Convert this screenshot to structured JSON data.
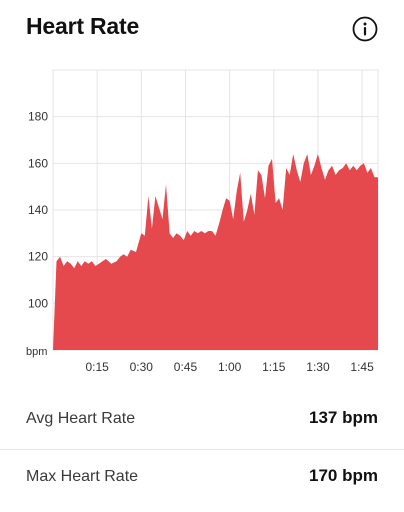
{
  "header": {
    "title": "Heart Rate",
    "info_icon": "info-icon"
  },
  "colors": {
    "accent": "#e5484d",
    "grid": "#e4e4e4",
    "tick_text": "#333333"
  },
  "chart_data": {
    "type": "area",
    "ylabel": "bpm",
    "ylim": [
      80,
      200
    ],
    "y_ticks": [
      100,
      120,
      140,
      160,
      180
    ],
    "x_unit": "minutes",
    "xlim": [
      0,
      1.84
    ],
    "x_ticks": [
      {
        "value": 0.25,
        "label": "0:15"
      },
      {
        "value": 0.5,
        "label": "0:30"
      },
      {
        "value": 0.75,
        "label": "0:45"
      },
      {
        "value": 1.0,
        "label": "1:00"
      },
      {
        "value": 1.25,
        "label": "1:15"
      },
      {
        "value": 1.5,
        "label": "1:30"
      },
      {
        "value": 1.75,
        "label": "1:45"
      }
    ],
    "series": [
      {
        "x": [
          0.0,
          0.02,
          0.04,
          0.06,
          0.08,
          0.1,
          0.12,
          0.14,
          0.16,
          0.18,
          0.2,
          0.22,
          0.24,
          0.26,
          0.28,
          0.3,
          0.33,
          0.36,
          0.38,
          0.4,
          0.42,
          0.44,
          0.47,
          0.5,
          0.52,
          0.54,
          0.56,
          0.58,
          0.6,
          0.62,
          0.64,
          0.66,
          0.68,
          0.7,
          0.72,
          0.74,
          0.76,
          0.78,
          0.8,
          0.82,
          0.84,
          0.86,
          0.88,
          0.9,
          0.92,
          0.94,
          0.96,
          0.98,
          1.0,
          1.02,
          1.04,
          1.06,
          1.08,
          1.1,
          1.12,
          1.14,
          1.16,
          1.18,
          1.2,
          1.22,
          1.24,
          1.26,
          1.28,
          1.3,
          1.32,
          1.34,
          1.36,
          1.38,
          1.4,
          1.42,
          1.44,
          1.46,
          1.48,
          1.5,
          1.52,
          1.54,
          1.56,
          1.58,
          1.6,
          1.62,
          1.64,
          1.66,
          1.68,
          1.7,
          1.72,
          1.74,
          1.76,
          1.78,
          1.8,
          1.82,
          1.84
        ],
        "values": [
          80,
          118,
          120,
          116,
          118,
          117,
          115,
          118,
          116,
          118,
          117,
          118,
          116,
          117,
          118,
          119,
          117,
          118,
          120,
          121,
          120,
          123,
          122,
          130,
          129,
          146,
          132,
          146,
          141,
          136,
          151,
          130,
          128,
          130,
          129,
          127,
          131,
          129,
          131,
          130,
          131,
          130,
          131,
          131,
          129,
          134,
          140,
          145,
          144,
          136,
          148,
          156,
          135,
          140,
          147,
          138,
          157,
          155,
          145,
          159,
          162,
          143,
          145,
          140,
          158,
          155,
          164,
          157,
          152,
          160,
          164,
          155,
          159,
          164,
          158,
          153,
          157,
          159,
          155,
          157,
          158,
          160,
          157,
          159,
          157,
          159,
          160,
          156,
          158,
          154,
          154
        ]
      }
    ]
  },
  "stats": [
    {
      "label": "Avg Heart Rate",
      "value": "137 bpm"
    },
    {
      "label": "Max Heart Rate",
      "value": "170 bpm"
    }
  ]
}
